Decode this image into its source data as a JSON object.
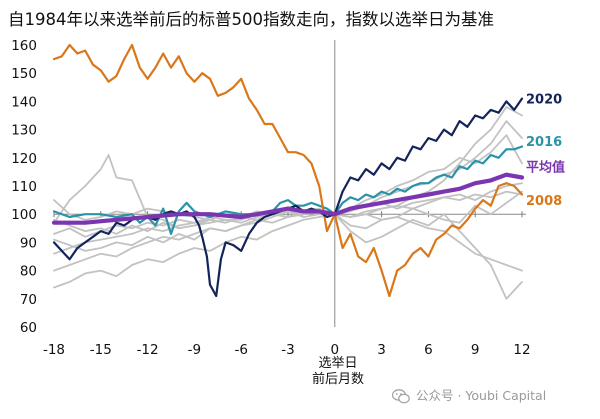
{
  "title": "自1984年以来选举前后的标普500指数走向，指数以选举日为基准",
  "watermark": "公众号 · Youbi Capital",
  "colors": {
    "y2020": "#13245a",
    "y2016": "#2a93a8",
    "avg": "#7b35b0",
    "y2008": "#d9771a",
    "other": "#c2c2c2"
  },
  "chart_data": {
    "type": "line",
    "title": "自1984年以来选举前后的标普500指数走向，指数以选举日为基准",
    "xlabel": "选举日 前后月数",
    "xlabel_lines": [
      "选举日",
      "前后月数"
    ],
    "ylabel": "",
    "x_ticks": [
      -18,
      -15,
      -12,
      -9,
      -6,
      -3,
      0,
      3,
      6,
      9,
      12
    ],
    "y_ticks": [
      60,
      70,
      80,
      90,
      100,
      110,
      120,
      130,
      140,
      150,
      160
    ],
    "xlim": [
      -18,
      12
    ],
    "ylim": [
      60,
      160
    ],
    "grid": false,
    "reference_lines": {
      "y": 100,
      "x": 0
    },
    "legend": "direct labels at right end of lines",
    "series": [
      {
        "name": "2020",
        "color": "#13245a",
        "label": true,
        "x": [
          -18,
          -17.5,
          -17,
          -16.5,
          -16,
          -15.5,
          -15,
          -14.5,
          -14,
          -13.5,
          -13,
          -12.5,
          -12,
          -11.5,
          -11,
          -10.5,
          -10,
          -9.5,
          -9,
          -8.7,
          -8.5,
          -8.2,
          -8,
          -7.6,
          -7.3,
          -7,
          -6.5,
          -6,
          -5.5,
          -5,
          -4.5,
          -4,
          -3.5,
          -3,
          -2.5,
          -2,
          -1.5,
          -1,
          -0.5,
          0,
          0.5,
          1,
          1.5,
          2,
          2.5,
          3,
          3.5,
          4,
          4.5,
          5,
          5.5,
          6,
          6.5,
          7,
          7.5,
          8,
          8.5,
          9,
          9.5,
          10,
          10.5,
          11,
          11.5,
          12
        ],
        "y": [
          90,
          87,
          84,
          88,
          90,
          92,
          94,
          93,
          97,
          96,
          98,
          99,
          99,
          98,
          100,
          101,
          100,
          101,
          99,
          96,
          92,
          85,
          75,
          71,
          84,
          90,
          89,
          87,
          93,
          97,
          99,
          100,
          101,
          102,
          103,
          101,
          102,
          101,
          99,
          100,
          108,
          113,
          112,
          116,
          114,
          118,
          116,
          120,
          119,
          124,
          123,
          127,
          126,
          130,
          128,
          133,
          131,
          135,
          134,
          137,
          136,
          140,
          137,
          141
        ]
      },
      {
        "name": "2016",
        "color": "#2a93a8",
        "label": true,
        "x": [
          -18,
          -17,
          -16,
          -15,
          -14,
          -13,
          -12.5,
          -12,
          -11.5,
          -11,
          -10.5,
          -10,
          -9.5,
          -9,
          -8,
          -7,
          -6,
          -5,
          -4,
          -3.5,
          -3,
          -2.5,
          -2,
          -1.5,
          -1,
          -0.5,
          0,
          0.5,
          1,
          1.5,
          2,
          2.5,
          3,
          3.5,
          4,
          4.5,
          5,
          5.5,
          6,
          6.5,
          7,
          7.5,
          8,
          8.5,
          9,
          9.5,
          10,
          10.5,
          11,
          11.5,
          12
        ],
        "y": [
          101,
          99,
          100,
          100,
          99,
          100,
          97,
          99,
          96,
          102,
          93,
          101,
          104,
          101,
          99,
          101,
          100,
          100,
          101,
          104,
          105,
          103,
          103,
          104,
          103,
          102,
          100,
          104,
          106,
          105,
          107,
          106,
          108,
          107,
          109,
          108,
          110,
          111,
          111,
          113,
          114,
          113,
          117,
          116,
          119,
          118,
          121,
          120,
          123,
          123,
          124
        ]
      },
      {
        "name": "平均值",
        "color": "#7b35b0",
        "label": true,
        "x": [
          -18,
          -16,
          -14,
          -12,
          -10,
          -8,
          -6,
          -4,
          -3,
          -2,
          -1,
          0,
          1,
          2,
          3,
          4,
          5,
          6,
          7,
          8,
          9,
          10,
          11,
          12
        ],
        "y": [
          97,
          97,
          98,
          99,
          100,
          100,
          99,
          101,
          102,
          101,
          101,
          100,
          102,
          103,
          104,
          105,
          106,
          107,
          108,
          109,
          111,
          112,
          114,
          113
        ]
      },
      {
        "name": "2008",
        "color": "#d9771a",
        "label": true,
        "x": [
          -18,
          -17.5,
          -17,
          -16.5,
          -16,
          -15.5,
          -15,
          -14.5,
          -14,
          -13.5,
          -13,
          -12.5,
          -12,
          -11.5,
          -11,
          -10.5,
          -10,
          -9.5,
          -9,
          -8.5,
          -8,
          -7.5,
          -7,
          -6.5,
          -6,
          -5.5,
          -5,
          -4.5,
          -4,
          -3.5,
          -3,
          -2.5,
          -2,
          -1.5,
          -1,
          -0.5,
          0,
          0.5,
          1,
          1.5,
          2,
          2.5,
          3,
          3.5,
          4,
          4.5,
          5,
          5.5,
          6,
          6.5,
          7,
          7.5,
          8,
          8.5,
          9,
          9.5,
          10,
          10.5,
          11,
          11.5,
          12
        ],
        "y": [
          155,
          156,
          160,
          157,
          158,
          153,
          151,
          147,
          149,
          155,
          160,
          152,
          148,
          152,
          157,
          152,
          156,
          150,
          147,
          150,
          148,
          142,
          143,
          145,
          148,
          141,
          137,
          132,
          132,
          127,
          122,
          122,
          121,
          118,
          110,
          94,
          100,
          88,
          93,
          85,
          83,
          88,
          80,
          71,
          80,
          82,
          86,
          88,
          85,
          91,
          93,
          96,
          95,
          98,
          102,
          105,
          103,
          110,
          111,
          110,
          107
        ]
      },
      {
        "name": "",
        "color": "#c2c2c2",
        "x": [
          -18,
          -17,
          -16,
          -15,
          -14.5,
          -14,
          -13,
          -12,
          -11,
          -10,
          -9,
          -8,
          -7,
          -6,
          -5,
          -4,
          -3,
          -2,
          -1,
          0,
          1,
          2,
          3,
          4,
          5,
          6,
          7,
          8,
          9,
          10,
          11,
          12
        ],
        "y": [
          97,
          105,
          110,
          116,
          121,
          113,
          112,
          99,
          98,
          95,
          96,
          97,
          98,
          98,
          100,
          101,
          102,
          101,
          101,
          100,
          102,
          103,
          106,
          108,
          110,
          111,
          114,
          116,
          120,
          125,
          133,
          127
        ]
      },
      {
        "name": "",
        "color": "#c2c2c2",
        "x": [
          -18,
          -17,
          -16,
          -15,
          -14,
          -13,
          -12,
          -11,
          -10,
          -9,
          -8,
          -7,
          -6,
          -5,
          -4,
          -3,
          -2,
          -1,
          0,
          1,
          2,
          3,
          4,
          5,
          6,
          7,
          8,
          9,
          10,
          11,
          12
        ],
        "y": [
          86,
          88,
          90,
          91,
          92,
          93,
          95,
          94,
          96,
          97,
          98,
          97,
          99,
          100,
          101,
          102,
          101,
          102,
          100,
          99,
          100,
          102,
          103,
          106,
          108,
          112,
          118,
          125,
          130,
          138,
          135
        ]
      },
      {
        "name": "",
        "color": "#c2c2c2",
        "x": [
          -18,
          -17,
          -16,
          -15,
          -14,
          -13,
          -12,
          -11,
          -10,
          -9,
          -8,
          -7,
          -6,
          -5,
          -4,
          -3,
          -2,
          -1,
          0,
          1,
          2,
          3,
          4,
          5,
          6,
          7,
          8,
          9,
          10,
          11,
          12
        ],
        "y": [
          91,
          89,
          87,
          88,
          90,
          89,
          92,
          90,
          93,
          91,
          95,
          94,
          96,
          97,
          99,
          101,
          100,
          101,
          100,
          102,
          105,
          107,
          110,
          112,
          115,
          116,
          120,
          118,
          122,
          128,
          118
        ]
      },
      {
        "name": "",
        "color": "#c2c2c2",
        "x": [
          -18,
          -17,
          -16,
          -15,
          -14,
          -13,
          -12,
          -11,
          -10,
          -9,
          -8,
          -7,
          -6,
          -5,
          -4,
          -3,
          -2,
          -1,
          0,
          1,
          2,
          3,
          4,
          5,
          6,
          7,
          8,
          9,
          10,
          11,
          12
        ],
        "y": [
          80,
          82,
          84,
          86,
          85,
          88,
          90,
          92,
          91,
          93,
          95,
          94,
          96,
          98,
          97,
          99,
          100,
          101,
          100,
          101,
          103,
          104,
          102,
          104,
          105,
          106,
          107,
          105,
          108,
          110,
          111
        ]
      },
      {
        "name": "",
        "color": "#c2c2c2",
        "x": [
          -18,
          -17,
          -16,
          -15,
          -14,
          -13,
          -12,
          -11,
          -10,
          -9,
          -8,
          -7,
          -6,
          -5,
          -4,
          -3,
          -2,
          -1,
          0,
          1,
          2,
          3,
          4,
          5,
          6,
          7,
          8,
          9,
          10,
          11,
          12
        ],
        "y": [
          74,
          76,
          79,
          80,
          78,
          82,
          84,
          83,
          86,
          88,
          87,
          90,
          92,
          91,
          94,
          96,
          98,
          99,
          100,
          99,
          101,
          102,
          103,
          102,
          104,
          106,
          105,
          107,
          106,
          108,
          107
        ]
      },
      {
        "name": "",
        "color": "#c2c2c2",
        "x": [
          -18,
          -17,
          -16,
          -15,
          -14,
          -13,
          -12,
          -11,
          -10,
          -9,
          -8,
          -7,
          -6,
          -5,
          -4,
          -3,
          -2,
          -1,
          0,
          1,
          2,
          3,
          4,
          5,
          6,
          7,
          8,
          9,
          10,
          11,
          12
        ],
        "y": [
          93,
          95,
          92,
          94,
          96,
          95,
          97,
          96,
          98,
          97,
          99,
          98,
          97,
          99,
          100,
          99,
          101,
          100,
          100,
          99,
          100,
          98,
          99,
          97,
          95,
          94,
          90,
          86,
          84,
          82,
          80
        ]
      },
      {
        "name": "",
        "color": "#c2c2c2",
        "x": [
          -18,
          -17,
          -16,
          -15,
          -14,
          -13,
          -12,
          -11,
          -10,
          -9,
          -8,
          -7,
          -6,
          -5,
          -4,
          -3,
          -2,
          -1,
          0,
          1,
          2,
          3,
          4,
          5,
          6,
          7,
          8,
          9,
          10,
          11,
          12
        ],
        "y": [
          105,
          100,
          98,
          99,
          101,
          100,
          102,
          101,
          100,
          99,
          98,
          100,
          99,
          101,
          100,
          99,
          100,
          101,
          100,
          94,
          90,
          92,
          95,
          98,
          96,
          100,
          94,
          88,
          82,
          70,
          76
        ]
      },
      {
        "name": "",
        "color": "#c2c2c2",
        "x": [
          -18,
          -17,
          -16,
          -15,
          -14,
          -13,
          -12,
          -11,
          -10,
          -9,
          -8,
          -7,
          -6,
          -5,
          -4,
          -3,
          -2,
          -1,
          0,
          1,
          2,
          3,
          4,
          5,
          6,
          7,
          8,
          9,
          10,
          11,
          12
        ],
        "y": [
          98,
          96,
          94,
          95,
          93,
          96,
          94,
          97,
          95,
          96,
          98,
          97,
          99,
          98,
          100,
          101,
          99,
          100,
          100,
          96,
          95,
          98,
          99,
          102,
          100,
          98,
          97,
          103,
          100,
          104,
          108
        ]
      }
    ]
  }
}
